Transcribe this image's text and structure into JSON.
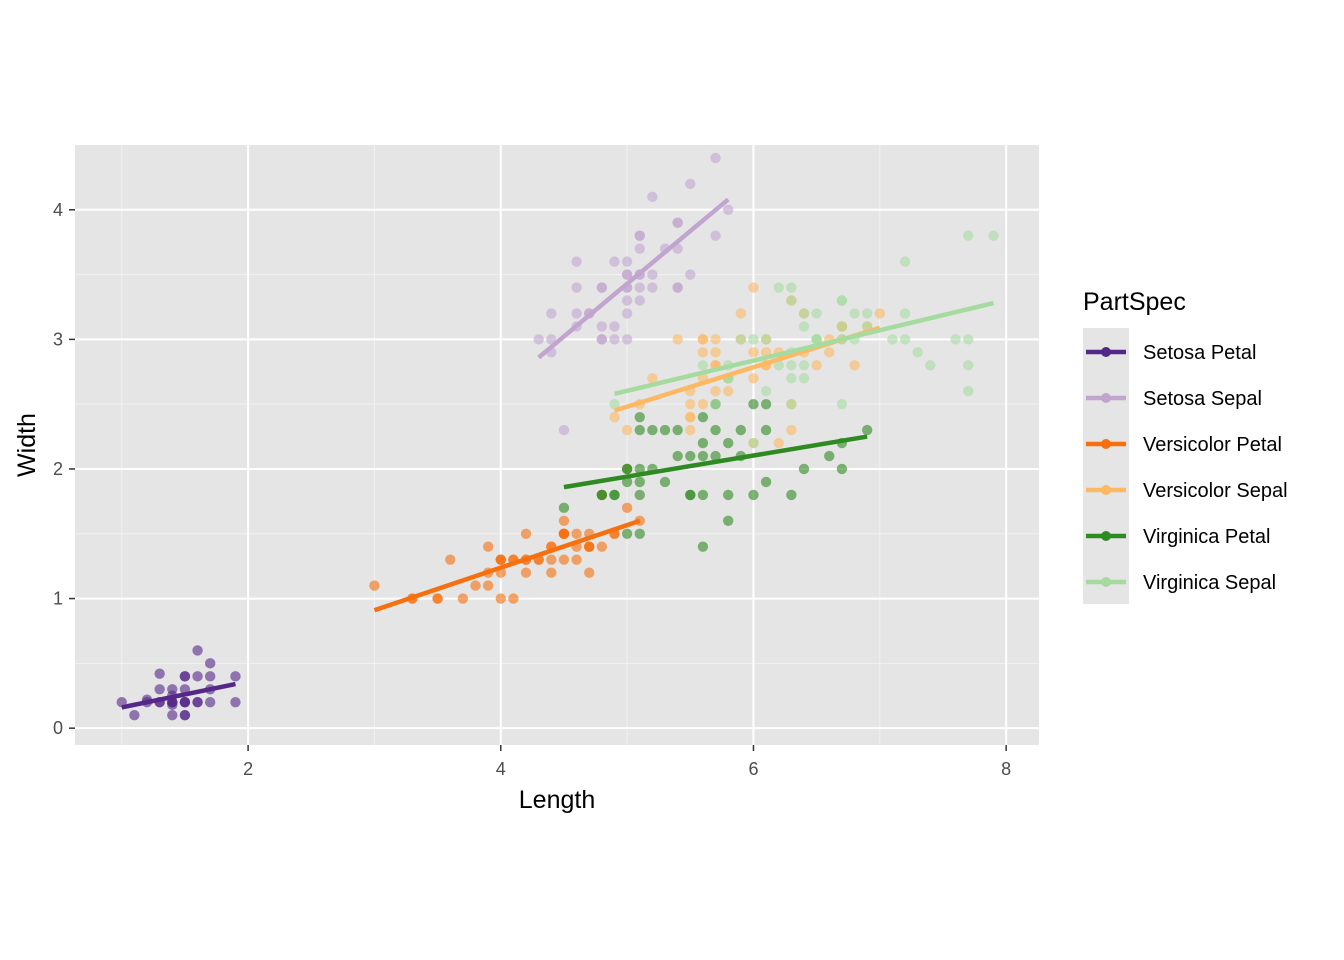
{
  "chart_data": {
    "type": "scatter",
    "xlabel": "Length",
    "ylabel": "Width",
    "xlim": [
      0.63,
      8.26
    ],
    "ylim": [
      -0.13,
      4.5
    ],
    "x_ticks": [
      2,
      4,
      6,
      8
    ],
    "y_ticks": [
      0,
      1,
      2,
      3,
      4
    ],
    "x_tick_labels": [
      "2",
      "4",
      "6",
      "8"
    ],
    "y_tick_labels": [
      "0",
      "1",
      "2",
      "3",
      "4"
    ],
    "grid": true,
    "legend": {
      "title": "PartSpec",
      "position": "right"
    },
    "series": [
      {
        "name": "Setosa Petal",
        "color": "#542788",
        "trend": {
          "x": [
            1.0,
            1.9
          ],
          "y": [
            0.16,
            0.34
          ]
        },
        "points": [
          [
            1.0,
            0.2
          ],
          [
            1.1,
            0.1
          ],
          [
            1.2,
            0.2
          ],
          [
            1.2,
            0.22
          ],
          [
            1.3,
            0.2
          ],
          [
            1.3,
            0.3
          ],
          [
            1.3,
            0.42
          ],
          [
            1.3,
            0.2
          ],
          [
            1.4,
            0.2
          ],
          [
            1.4,
            0.1
          ],
          [
            1.4,
            0.3
          ],
          [
            1.4,
            0.2
          ],
          [
            1.4,
            0.25
          ],
          [
            1.4,
            0.18
          ],
          [
            1.4,
            0.2
          ],
          [
            1.5,
            0.2
          ],
          [
            1.5,
            0.1
          ],
          [
            1.5,
            0.4
          ],
          [
            1.5,
            0.3
          ],
          [
            1.5,
            0.2
          ],
          [
            1.5,
            0.4
          ],
          [
            1.5,
            0.1
          ],
          [
            1.5,
            0.2
          ],
          [
            1.6,
            0.2
          ],
          [
            1.6,
            0.6
          ],
          [
            1.6,
            0.4
          ],
          [
            1.6,
            0.2
          ],
          [
            1.7,
            0.4
          ],
          [
            1.7,
            0.5
          ],
          [
            1.7,
            0.3
          ],
          [
            1.7,
            0.2
          ],
          [
            1.9,
            0.4
          ],
          [
            1.9,
            0.2
          ]
        ]
      },
      {
        "name": "Setosa Sepal",
        "color": "#c2a5cf",
        "trend": {
          "x": [
            4.3,
            5.8
          ],
          "y": [
            2.86,
            4.08
          ]
        },
        "points": [
          [
            4.3,
            3.0
          ],
          [
            4.4,
            2.9
          ],
          [
            4.4,
            3.0
          ],
          [
            4.4,
            3.2
          ],
          [
            4.5,
            2.3
          ],
          [
            4.6,
            3.1
          ],
          [
            4.6,
            3.4
          ],
          [
            4.6,
            3.6
          ],
          [
            4.6,
            3.2
          ],
          [
            4.7,
            3.2
          ],
          [
            4.7,
            3.2
          ],
          [
            4.8,
            3.4
          ],
          [
            4.8,
            3.0
          ],
          [
            4.8,
            3.4
          ],
          [
            4.8,
            3.1
          ],
          [
            4.8,
            3.0
          ],
          [
            4.9,
            3.0
          ],
          [
            4.9,
            3.1
          ],
          [
            4.9,
            3.6
          ],
          [
            5.0,
            3.6
          ],
          [
            5.0,
            3.4
          ],
          [
            5.0,
            3.0
          ],
          [
            5.0,
            3.4
          ],
          [
            5.0,
            3.2
          ],
          [
            5.0,
            3.5
          ],
          [
            5.0,
            3.3
          ],
          [
            5.0,
            3.5
          ],
          [
            5.1,
            3.5
          ],
          [
            5.1,
            3.8
          ],
          [
            5.1,
            3.8
          ],
          [
            5.1,
            3.7
          ],
          [
            5.1,
            3.3
          ],
          [
            5.1,
            3.4
          ],
          [
            5.1,
            3.5
          ],
          [
            5.2,
            3.5
          ],
          [
            5.2,
            3.4
          ],
          [
            5.2,
            4.1
          ],
          [
            5.3,
            3.7
          ],
          [
            5.4,
            3.9
          ],
          [
            5.4,
            3.7
          ],
          [
            5.4,
            3.4
          ],
          [
            5.4,
            3.9
          ],
          [
            5.4,
            3.4
          ],
          [
            5.5,
            3.5
          ],
          [
            5.5,
            4.2
          ],
          [
            5.7,
            4.4
          ],
          [
            5.7,
            3.8
          ],
          [
            5.8,
            4.0
          ]
        ]
      },
      {
        "name": "Versicolor Petal",
        "color": "#f76f0e",
        "trend": {
          "x": [
            3.0,
            5.1
          ],
          "y": [
            0.91,
            1.6
          ]
        },
        "points": [
          [
            3.0,
            1.1
          ],
          [
            3.3,
            1.0
          ],
          [
            3.3,
            1.0
          ],
          [
            3.5,
            1.0
          ],
          [
            3.5,
            1.0
          ],
          [
            3.6,
            1.3
          ],
          [
            3.7,
            1.0
          ],
          [
            3.8,
            1.1
          ],
          [
            3.9,
            1.4
          ],
          [
            3.9,
            1.1
          ],
          [
            3.9,
            1.2
          ],
          [
            4.0,
            1.3
          ],
          [
            4.0,
            1.0
          ],
          [
            4.0,
            1.3
          ],
          [
            4.0,
            1.2
          ],
          [
            4.0,
            1.3
          ],
          [
            4.1,
            1.0
          ],
          [
            4.1,
            1.3
          ],
          [
            4.1,
            1.3
          ],
          [
            4.2,
            1.3
          ],
          [
            4.2,
            1.5
          ],
          [
            4.2,
            1.2
          ],
          [
            4.2,
            1.3
          ],
          [
            4.3,
            1.3
          ],
          [
            4.3,
            1.3
          ],
          [
            4.4,
            1.4
          ],
          [
            4.4,
            1.2
          ],
          [
            4.4,
            1.3
          ],
          [
            4.4,
            1.4
          ],
          [
            4.5,
            1.5
          ],
          [
            4.5,
            1.3
          ],
          [
            4.5,
            1.5
          ],
          [
            4.5,
            1.5
          ],
          [
            4.5,
            1.6
          ],
          [
            4.5,
            1.5
          ],
          [
            4.6,
            1.5
          ],
          [
            4.6,
            1.4
          ],
          [
            4.6,
            1.3
          ],
          [
            4.7,
            1.4
          ],
          [
            4.7,
            1.4
          ],
          [
            4.7,
            1.2
          ],
          [
            4.7,
            1.5
          ],
          [
            4.7,
            1.4
          ],
          [
            4.8,
            1.8
          ],
          [
            4.8,
            1.4
          ],
          [
            4.9,
            1.5
          ],
          [
            4.9,
            1.5
          ],
          [
            5.0,
            1.7
          ],
          [
            5.1,
            1.6
          ]
        ]
      },
      {
        "name": "Versicolor Sepal",
        "color": "#fdb863",
        "trend": {
          "x": [
            4.9,
            7.0
          ],
          "y": [
            2.45,
            3.09
          ]
        },
        "points": [
          [
            4.9,
            2.4
          ],
          [
            5.0,
            2.0
          ],
          [
            5.0,
            2.3
          ],
          [
            5.1,
            2.5
          ],
          [
            5.2,
            2.7
          ],
          [
            5.4,
            3.0
          ],
          [
            5.5,
            2.3
          ],
          [
            5.5,
            2.4
          ],
          [
            5.5,
            2.4
          ],
          [
            5.5,
            2.5
          ],
          [
            5.5,
            2.6
          ],
          [
            5.6,
            2.9
          ],
          [
            5.6,
            3.0
          ],
          [
            5.6,
            2.5
          ],
          [
            5.6,
            3.0
          ],
          [
            5.6,
            2.7
          ],
          [
            5.7,
            2.8
          ],
          [
            5.7,
            2.6
          ],
          [
            5.7,
            3.0
          ],
          [
            5.7,
            2.9
          ],
          [
            5.7,
            2.8
          ],
          [
            5.8,
            2.7
          ],
          [
            5.8,
            2.7
          ],
          [
            5.8,
            2.6
          ],
          [
            5.9,
            3.0
          ],
          [
            5.9,
            3.2
          ],
          [
            6.0,
            2.2
          ],
          [
            6.0,
            2.9
          ],
          [
            6.0,
            2.7
          ],
          [
            6.0,
            3.4
          ],
          [
            6.1,
            2.9
          ],
          [
            6.1,
            2.8
          ],
          [
            6.1,
            2.8
          ],
          [
            6.1,
            3.0
          ],
          [
            6.2,
            2.2
          ],
          [
            6.2,
            2.9
          ],
          [
            6.3,
            3.3
          ],
          [
            6.3,
            2.5
          ],
          [
            6.3,
            2.3
          ],
          [
            6.4,
            3.2
          ],
          [
            6.4,
            2.9
          ],
          [
            6.5,
            2.8
          ],
          [
            6.6,
            2.9
          ],
          [
            6.6,
            3.0
          ],
          [
            6.7,
            3.1
          ],
          [
            6.7,
            3.0
          ],
          [
            6.7,
            3.1
          ],
          [
            6.8,
            2.8
          ],
          [
            6.9,
            3.1
          ],
          [
            7.0,
            3.2
          ]
        ]
      },
      {
        "name": "Virginica Petal",
        "color": "#2e8b22",
        "trend": {
          "x": [
            4.5,
            6.9
          ],
          "y": [
            1.86,
            2.25
          ]
        },
        "points": [
          [
            4.5,
            1.7
          ],
          [
            4.8,
            1.8
          ],
          [
            4.8,
            1.8
          ],
          [
            4.9,
            1.8
          ],
          [
            4.9,
            1.8
          ],
          [
            5.0,
            2.0
          ],
          [
            5.0,
            1.5
          ],
          [
            5.0,
            1.9
          ],
          [
            5.0,
            2.0
          ],
          [
            5.1,
            2.4
          ],
          [
            5.1,
            2.3
          ],
          [
            5.1,
            1.9
          ],
          [
            5.1,
            2.0
          ],
          [
            5.1,
            1.8
          ],
          [
            5.1,
            1.5
          ],
          [
            5.2,
            2.3
          ],
          [
            5.2,
            2.0
          ],
          [
            5.3,
            1.9
          ],
          [
            5.3,
            2.3
          ],
          [
            5.4,
            2.1
          ],
          [
            5.4,
            2.3
          ],
          [
            5.5,
            2.1
          ],
          [
            5.5,
            1.8
          ],
          [
            5.5,
            1.8
          ],
          [
            5.6,
            2.4
          ],
          [
            5.6,
            2.2
          ],
          [
            5.6,
            2.1
          ],
          [
            5.6,
            1.8
          ],
          [
            5.6,
            1.4
          ],
          [
            5.7,
            2.3
          ],
          [
            5.7,
            2.1
          ],
          [
            5.7,
            2.5
          ],
          [
            5.8,
            2.2
          ],
          [
            5.8,
            1.8
          ],
          [
            5.8,
            1.6
          ],
          [
            5.9,
            2.3
          ],
          [
            5.9,
            2.1
          ],
          [
            6.0,
            2.5
          ],
          [
            6.0,
            1.8
          ],
          [
            6.1,
            2.5
          ],
          [
            6.1,
            2.3
          ],
          [
            6.1,
            1.9
          ],
          [
            6.3,
            1.8
          ],
          [
            6.4,
            2.0
          ],
          [
            6.6,
            2.1
          ],
          [
            6.7,
            2.2
          ],
          [
            6.7,
            2.0
          ],
          [
            6.9,
            2.3
          ]
        ]
      },
      {
        "name": "Virginica Sepal",
        "color": "#a6dba0",
        "trend": {
          "x": [
            4.9,
            7.9
          ],
          "y": [
            2.58,
            3.28
          ]
        },
        "points": [
          [
            4.9,
            2.5
          ],
          [
            5.6,
            2.8
          ],
          [
            5.7,
            2.5
          ],
          [
            5.8,
            2.7
          ],
          [
            5.8,
            2.8
          ],
          [
            5.8,
            2.7
          ],
          [
            5.8,
            2.7
          ],
          [
            5.9,
            3.0
          ],
          [
            6.0,
            2.2
          ],
          [
            6.0,
            3.0
          ],
          [
            6.1,
            3.0
          ],
          [
            6.1,
            2.6
          ],
          [
            6.2,
            2.8
          ],
          [
            6.2,
            3.4
          ],
          [
            6.3,
            3.3
          ],
          [
            6.3,
            2.9
          ],
          [
            6.3,
            2.5
          ],
          [
            6.3,
            2.8
          ],
          [
            6.3,
            2.7
          ],
          [
            6.3,
            3.4
          ],
          [
            6.4,
            2.7
          ],
          [
            6.4,
            3.2
          ],
          [
            6.4,
            2.8
          ],
          [
            6.4,
            3.1
          ],
          [
            6.5,
            3.0
          ],
          [
            6.5,
            3.2
          ],
          [
            6.5,
            3.0
          ],
          [
            6.5,
            3.0
          ],
          [
            6.7,
            2.5
          ],
          [
            6.7,
            3.3
          ],
          [
            6.7,
            3.1
          ],
          [
            6.7,
            3.3
          ],
          [
            6.7,
            3.0
          ],
          [
            6.8,
            3.0
          ],
          [
            6.8,
            3.2
          ],
          [
            6.9,
            3.2
          ],
          [
            6.9,
            3.1
          ],
          [
            7.1,
            3.0
          ],
          [
            7.2,
            3.6
          ],
          [
            7.2,
            3.2
          ],
          [
            7.2,
            3.0
          ],
          [
            7.3,
            2.9
          ],
          [
            7.4,
            2.8
          ],
          [
            7.6,
            3.0
          ],
          [
            7.7,
            3.8
          ],
          [
            7.7,
            2.6
          ],
          [
            7.7,
            2.8
          ],
          [
            7.7,
            3.0
          ],
          [
            7.9,
            3.8
          ]
        ]
      }
    ]
  }
}
